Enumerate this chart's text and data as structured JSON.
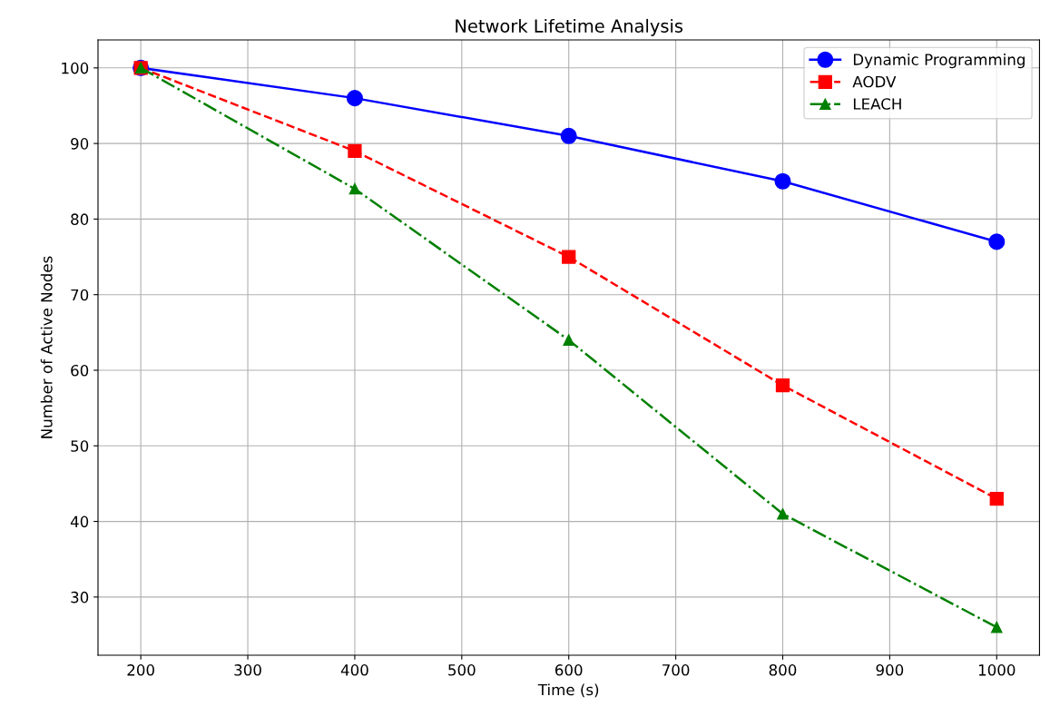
{
  "chart_data": {
    "type": "line",
    "title": "Network Lifetime Analysis",
    "xlabel": "Time (s)",
    "ylabel": "Number of Active Nodes",
    "x": [
      200,
      400,
      600,
      800,
      1000
    ],
    "series": [
      {
        "name": "Dynamic Programming",
        "color": "#0000ff",
        "values": [
          100,
          96,
          91,
          85,
          77
        ],
        "marker": "circle",
        "line_style": "solid"
      },
      {
        "name": "AODV",
        "color": "#ff0000",
        "values": [
          100,
          89,
          75,
          58,
          43
        ],
        "marker": "square",
        "line_style": "dashed"
      },
      {
        "name": "LEACH",
        "color": "#008000",
        "values": [
          100,
          84,
          64,
          41,
          26
        ],
        "marker": "triangle",
        "line_style": "dashdot"
      }
    ],
    "xlim": [
      160,
      1040
    ],
    "xticks": [
      200,
      300,
      400,
      500,
      600,
      700,
      800,
      900,
      1000
    ],
    "ylim": [
      22.3,
      103.7
    ],
    "yticks": [
      30,
      40,
      50,
      60,
      70,
      80,
      90,
      100
    ],
    "grid": true,
    "legend": "top right"
  }
}
